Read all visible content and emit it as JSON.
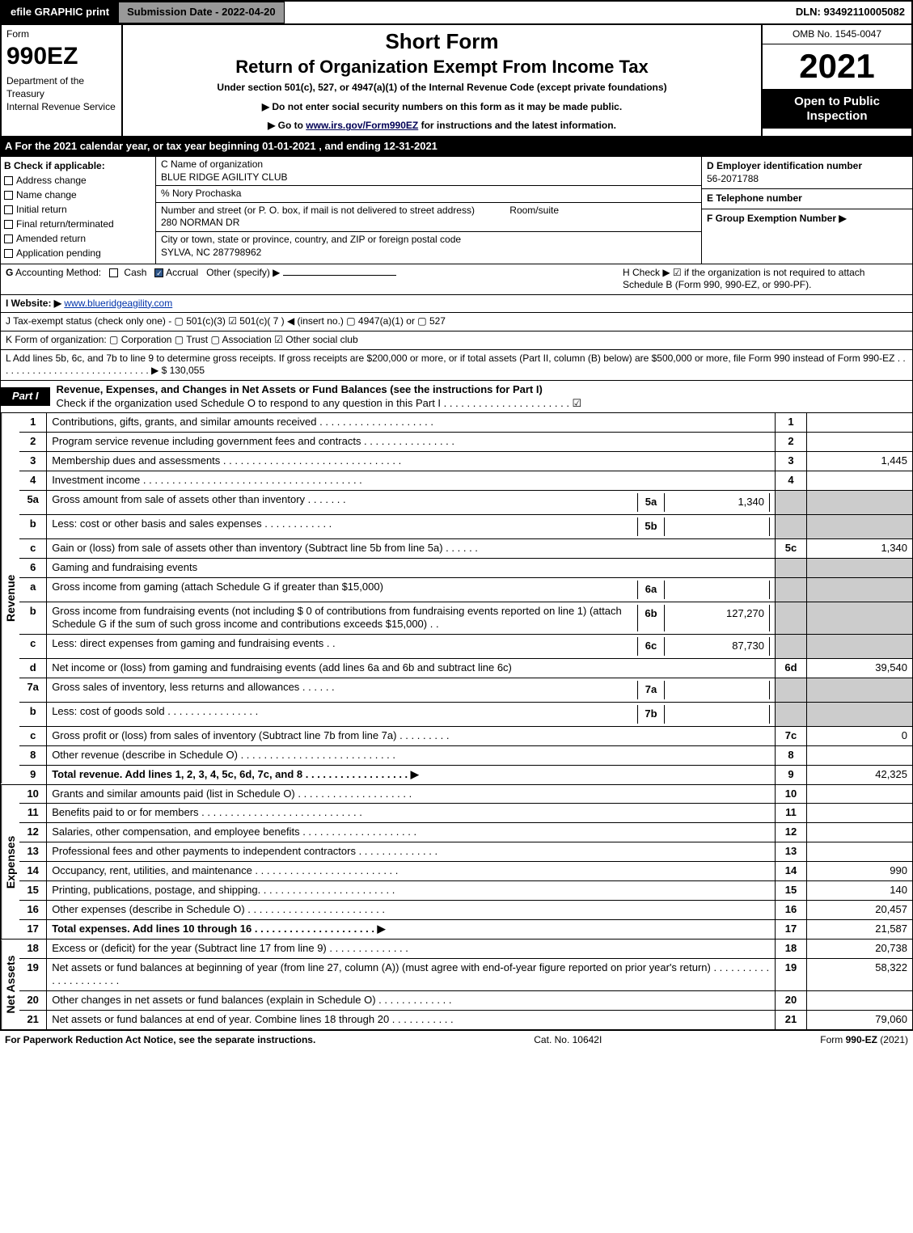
{
  "header": {
    "efile": "efile GRAPHIC print",
    "submission": "Submission Date - 2022-04-20",
    "dln": "DLN: 93492110005082"
  },
  "top_left": {
    "form_word": "Form",
    "form_num": "990EZ",
    "dept": "Department of the Treasury\nInternal Revenue Service"
  },
  "top_center": {
    "short": "Short Form",
    "title": "Return of Organization Exempt From Income Tax",
    "under": "Under section 501(c), 527, or 4947(a)(1) of the Internal Revenue Code (except private foundations)",
    "l1": "▶ Do not enter social security numbers on this form as it may be made public.",
    "l2_pre": "▶ Go to ",
    "l2_link": "www.irs.gov/Form990EZ",
    "l2_post": " for instructions and the latest information."
  },
  "top_right": {
    "omb": "OMB No. 1545-0047",
    "year": "2021",
    "open": "Open to Public Inspection"
  },
  "row_a": "A  For the 2021 calendar year, or tax year beginning 01-01-2021 , and ending 12-31-2021",
  "box_b": {
    "heading": "B  Check if applicable:",
    "opts": [
      "Address change",
      "Name change",
      "Initial return",
      "Final return/terminated",
      "Amended return",
      "Application pending"
    ]
  },
  "box_c": {
    "label_name": "C Name of organization",
    "name": "BLUE RIDGE AGILITY CLUB",
    "care_of": "% Nory Prochaska",
    "label_street": "Number and street (or P. O. box, if mail is not delivered to street address)",
    "room_label": "Room/suite",
    "street": "280 NORMAN DR",
    "label_city": "City or town, state or province, country, and ZIP or foreign postal code",
    "city": "SYLVA, NC  287798962"
  },
  "box_d": {
    "label": "D Employer identification number",
    "ein": "56-2071788",
    "e_label": "E Telephone number",
    "f_label": "F Group Exemption Number  ▶"
  },
  "row_g": "G Accounting Method:   ▢ Cash  ☑ Accrual  Other (specify) ▶",
  "row_h": "H  Check ▶  ☑  if the organization is not required to attach Schedule B (Form 990, 990-EZ, or 990-PF).",
  "row_i_label": "I Website: ▶",
  "row_i_site": "www.blueridgeagility.com",
  "row_j": "J Tax-exempt status (check only one) -  ▢ 501(c)(3)  ☑  501(c)( 7 ) ◀ (insert no.)  ▢  4947(a)(1) or  ▢  527",
  "row_k": "K Form of organization:   ▢ Corporation   ▢ Trust   ▢ Association   ☑ Other social club",
  "row_l_text": "L Add lines 5b, 6c, and 7b to line 9 to determine gross receipts. If gross receipts are $200,000 or more, or if total assets (Part II, column (B) below) are $500,000 or more, file Form 990 instead of Form 990-EZ . . . . . . . . . . . . . . . . . . . . . . . . . . . . .  ▶ $ ",
  "row_l_amt": "130,055",
  "part1": {
    "badge": "Part I",
    "title": "Revenue, Expenses, and Changes in Net Assets or Fund Balances (see the instructions for Part I)",
    "sub": "Check if the organization used Schedule O to respond to any question in this Part I . . . . . . . . . . . . . . . . . . . . . .  ☑"
  },
  "labels": {
    "revenue": "Revenue",
    "expenses": "Expenses",
    "netassets": "Net Assets"
  },
  "rev_rows": [
    {
      "n": "1",
      "desc": "Contributions, gifts, grants, and similar amounts received . . . . . . . . . . . . . . . . . . . .",
      "rn": "1",
      "amt": ""
    },
    {
      "n": "2",
      "desc": "Program service revenue including government fees and contracts . . . . . . . . . . . . . . . .",
      "rn": "2",
      "amt": ""
    },
    {
      "n": "3",
      "desc": "Membership dues and assessments . . . . . . . . . . . . . . . . . . . . . . . . . . . . . . .",
      "rn": "3",
      "amt": "1,445"
    },
    {
      "n": "4",
      "desc": "Investment income . . . . . . . . . . . . . . . . . . . . . . . . . . . . . . . . . . . . . .",
      "rn": "4",
      "amt": ""
    }
  ],
  "rev_sub5": [
    {
      "n": "5a",
      "desc": "Gross amount from sale of assets other than inventory . . . . . . .",
      "sn": "5a",
      "samt": "1,340",
      "shade": true
    },
    {
      "n": "b",
      "desc": "Less: cost or other basis and sales expenses . . . . . . . . . . . .",
      "sn": "5b",
      "samt": "",
      "shade": true
    },
    {
      "n": "c",
      "desc": "Gain or (loss) from sale of assets other than inventory (Subtract line 5b from line 5a) . . . . . .",
      "rn": "5c",
      "amt": "1,340"
    }
  ],
  "rev_6": {
    "n": "6",
    "desc": "Gaming and fundraising events"
  },
  "rev_sub6": [
    {
      "n": "a",
      "desc": "Gross income from gaming (attach Schedule G if greater than $15,000)",
      "sn": "6a",
      "samt": "",
      "shade": true
    },
    {
      "n": "b",
      "desc": "Gross income from fundraising events (not including $  0             of contributions from fundraising events reported on line 1) (attach Schedule G if the sum of such gross income and contributions exceeds $15,000)    . .",
      "sn": "6b",
      "samt": "127,270",
      "shade": true
    },
    {
      "n": "c",
      "desc": "Less: direct expenses from gaming and fundraising events            . .",
      "sn": "6c",
      "samt": "87,730",
      "shade": true
    },
    {
      "n": "d",
      "desc": "Net income or (loss) from gaming and fundraising events (add lines 6a and 6b and subtract line 6c)",
      "rn": "6d",
      "amt": "39,540"
    }
  ],
  "rev_sub7": [
    {
      "n": "7a",
      "desc": "Gross sales of inventory, less returns and allowances . . . . . .",
      "sn": "7a",
      "samt": "",
      "shade": true
    },
    {
      "n": "b",
      "desc": "Less: cost of goods sold          . . . . . . . . . . . . . . . .",
      "sn": "7b",
      "samt": "",
      "shade": true
    },
    {
      "n": "c",
      "desc": "Gross profit or (loss) from sales of inventory (Subtract line 7b from line 7a) . . . . . . . . .",
      "rn": "7c",
      "amt": "0"
    }
  ],
  "rev_rows2": [
    {
      "n": "8",
      "desc": "Other revenue (describe in Schedule O) . . . . . . . . . . . . . . . . . . . . . . . . . . .",
      "rn": "8",
      "amt": ""
    },
    {
      "n": "9",
      "desc": "Total revenue. Add lines 1, 2, 3, 4, 5c, 6d, 7c, and 8  . . . . . . . . . . . . . . . . . .  ▶",
      "rn": "9",
      "amt": "42,325",
      "bold": true
    }
  ],
  "exp_rows": [
    {
      "n": "10",
      "desc": "Grants and similar amounts paid (list in Schedule O) . . . . . . . . . . . . . . . . . . . .",
      "rn": "10",
      "amt": ""
    },
    {
      "n": "11",
      "desc": "Benefits paid to or for members      . . . . . . . . . . . . . . . . . . . . . . . . . . . .",
      "rn": "11",
      "amt": ""
    },
    {
      "n": "12",
      "desc": "Salaries, other compensation, and employee benefits . . . . . . . . . . . . . . . . . . . .",
      "rn": "12",
      "amt": ""
    },
    {
      "n": "13",
      "desc": "Professional fees and other payments to independent contractors . . . . . . . . . . . . . .",
      "rn": "13",
      "amt": ""
    },
    {
      "n": "14",
      "desc": "Occupancy, rent, utilities, and maintenance . . . . . . . . . . . . . . . . . . . . . . . . .",
      "rn": "14",
      "amt": "990"
    },
    {
      "n": "15",
      "desc": "Printing, publications, postage, and shipping. . . . . . . . . . . . . . . . . . . . . . . .",
      "rn": "15",
      "amt": "140"
    },
    {
      "n": "16",
      "desc": "Other expenses (describe in Schedule O)      . . . . . . . . . . . . . . . . . . . . . . . .",
      "rn": "16",
      "amt": "20,457"
    },
    {
      "n": "17",
      "desc": "Total expenses. Add lines 10 through 16      . . . . . . . . . . . . . . . . . . . . .  ▶",
      "rn": "17",
      "amt": "21,587",
      "bold": true
    }
  ],
  "na_rows": [
    {
      "n": "18",
      "desc": "Excess or (deficit) for the year (Subtract line 17 from line 9)        . . . . . . . . . . . . . .",
      "rn": "18",
      "amt": "20,738"
    },
    {
      "n": "19",
      "desc": "Net assets or fund balances at beginning of year (from line 27, column (A)) (must agree with end-of-year figure reported on prior year's return) . . . . . . . . . . . . . . . . . . . . . .",
      "rn": "19",
      "amt": "58,322"
    },
    {
      "n": "20",
      "desc": "Other changes in net assets or fund balances (explain in Schedule O) . . . . . . . . . . . . .",
      "rn": "20",
      "amt": ""
    },
    {
      "n": "21",
      "desc": "Net assets or fund balances at end of year. Combine lines 18 through 20 . . . . . . . . . . .",
      "rn": "21",
      "amt": "79,060"
    }
  ],
  "footer": {
    "left": "For Paperwork Reduction Act Notice, see the separate instructions.",
    "mid": "Cat. No. 10642I",
    "right_pre": "Form ",
    "right_bold": "990-EZ",
    "right_post": " (2021)"
  }
}
